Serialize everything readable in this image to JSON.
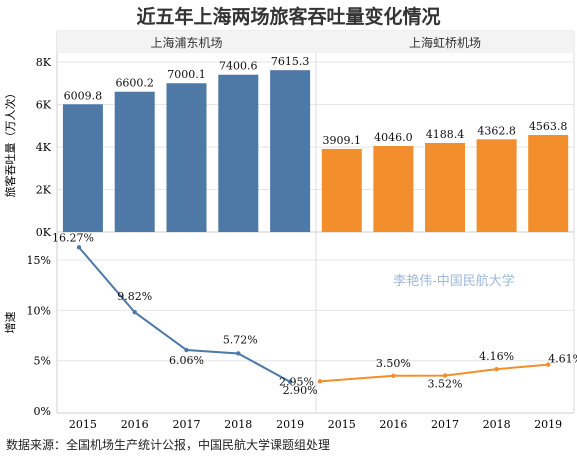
{
  "title": "近五年上海两场旅客吞吐量变化情况",
  "footer": "数据来源：全国机场生产统计公报，中国民航大学课题组处理",
  "watermark": "李艳伟-中国民航大学",
  "colors": {
    "pudong": "#4e79a7",
    "hongqiao": "#f28e2b",
    "grid": "#e6e6e6",
    "header_bg": "#f3f3f3",
    "watermark": "#9fb8d8"
  },
  "chart_data": {
    "type": "bar",
    "categories": [
      "2015",
      "2016",
      "2017",
      "2018",
      "2019"
    ],
    "panels": [
      "上海浦东机场",
      "上海虹桥机场"
    ],
    "top": {
      "ylabel": "旅客吞吐量（万人次）",
      "ylim": [
        0,
        8000
      ],
      "ticks": [
        0,
        2000,
        4000,
        6000,
        8000
      ],
      "tick_labels": [
        "0K",
        "2K",
        "4K",
        "6K",
        "8K"
      ],
      "series": [
        {
          "name": "上海浦东机场",
          "values": [
            6009.8,
            6600.2,
            7000.1,
            7400.6,
            7615.3
          ],
          "labels": [
            "6009.8",
            "6600.2",
            "7000.1",
            "7400.6",
            "7615.3"
          ]
        },
        {
          "name": "上海虹桥机场",
          "values": [
            3909.1,
            4046.0,
            4188.4,
            4362.8,
            4563.8
          ],
          "labels": [
            "3909.1",
            "4046.0",
            "4188.4",
            "4362.8",
            "4563.8"
          ]
        }
      ]
    },
    "bottom": {
      "type": "line",
      "ylabel": "增速",
      "ylim": [
        0,
        17
      ],
      "ticks": [
        0,
        5,
        10,
        15
      ],
      "tick_labels": [
        "0%",
        "5%",
        "10%",
        "15%"
      ],
      "series": [
        {
          "name": "上海浦东机场",
          "values": [
            16.27,
            9.82,
            6.06,
            5.72,
            2.9
          ],
          "labels": [
            "16.27%",
            "9.82%",
            "6.06%",
            "5.72%",
            "2.90%"
          ]
        },
        {
          "name": "上海虹桥机场",
          "values": [
            2.95,
            3.5,
            3.52,
            4.16,
            4.61
          ],
          "labels": [
            "2.95%",
            "3.50%",
            "3.52%",
            "4.16%",
            "4.61%"
          ]
        }
      ]
    }
  }
}
